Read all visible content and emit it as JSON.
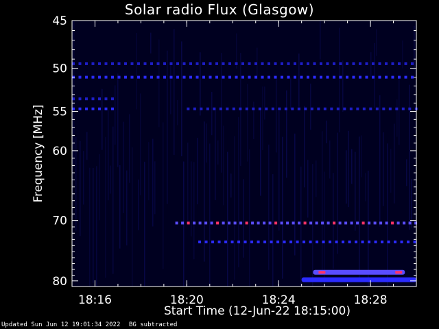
{
  "title": "Solar radio Flux (Glasgow)",
  "footer": {
    "updated": "Updated Sun Jun 12 19:01:34 2022",
    "note": "BG subtracted"
  },
  "chart_data": {
    "type": "heatmap",
    "title": "Solar radio Flux (Glasgow)",
    "xlabel": "Start Time (12-Jun-22 18:15:00)",
    "ylabel": "Frequency [MHz]",
    "x_range_minutes": [
      "18:15:00",
      "18:30:00"
    ],
    "ylim": [
      45,
      81
    ],
    "y_scale": "log",
    "yticks": [
      45,
      50,
      55,
      60,
      70,
      80
    ],
    "xticks": [
      "18:16",
      "18:20",
      "18:24",
      "18:28"
    ],
    "colormap": [
      "#000020",
      "#0000ff",
      "#ff3366"
    ],
    "features": [
      {
        "freq_mhz": 49.5,
        "start": "18:15",
        "end": "18:30",
        "intensity": "weak",
        "pattern": "dotted"
      },
      {
        "freq_mhz": 51.0,
        "start": "18:15",
        "end": "18:30",
        "intensity": "moderate",
        "pattern": "dotted"
      },
      {
        "freq_mhz": 53.5,
        "start": "18:15",
        "end": "18:16:45",
        "intensity": "weak",
        "pattern": "dotted"
      },
      {
        "freq_mhz": 54.7,
        "start": "18:15",
        "end": "18:16:45",
        "intensity": "moderate",
        "pattern": "dotted"
      },
      {
        "freq_mhz": 54.7,
        "start": "18:20",
        "end": "18:30",
        "intensity": "weak",
        "pattern": "dotted"
      },
      {
        "freq_mhz": 70.4,
        "start": "18:19:30",
        "end": "18:30",
        "intensity": "strong",
        "pattern": "dotted"
      },
      {
        "freq_mhz": 73.4,
        "start": "18:20:30",
        "end": "18:30",
        "intensity": "moderate",
        "pattern": "dotted"
      },
      {
        "freq_mhz": 78.5,
        "start": "18:25:30",
        "end": "18:29:30",
        "intensity": "strong",
        "pattern": "band"
      },
      {
        "freq_mhz": 79.8,
        "start": "18:25",
        "end": "18:30",
        "intensity": "moderate",
        "pattern": "band"
      }
    ]
  }
}
